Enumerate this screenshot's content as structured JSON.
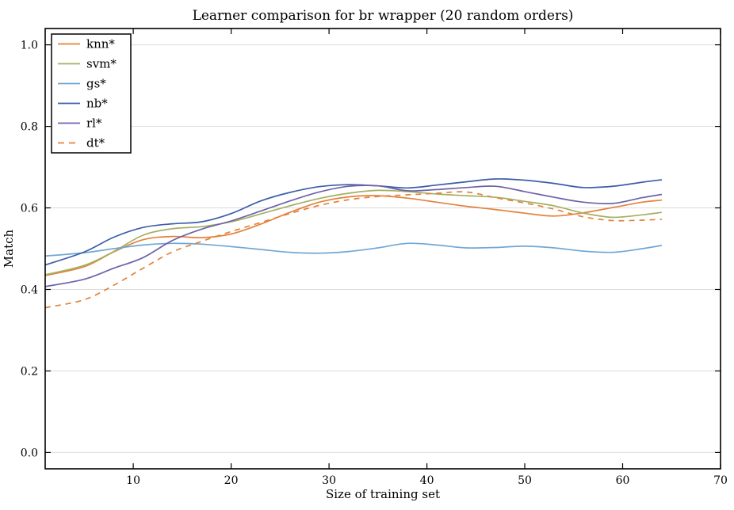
{
  "chart_data": {
    "type": "line",
    "title": "Learner comparison for br wrapper (20 random orders)",
    "xlabel": "Size of training set",
    "ylabel": "Match",
    "xlim": [
      1,
      70
    ],
    "ylim": [
      -0.04,
      1.04
    ],
    "xticks": [
      10,
      20,
      30,
      40,
      50,
      60,
      70
    ],
    "xtick_labels": [
      "10",
      "20",
      "30",
      "40",
      "50",
      "60",
      "70"
    ],
    "yticks": [
      0.0,
      0.2,
      0.4,
      0.6,
      0.8,
      1.0
    ],
    "ytick_labels": [
      "0.0",
      "0.2",
      "0.4",
      "0.6",
      "0.8",
      "1.0"
    ],
    "grid": "horizontal",
    "grid_color": "#dcdcdc",
    "spine_color": "#000000",
    "legend_position": "upper-left",
    "x": [
      1,
      5,
      8,
      11,
      14,
      17,
      20,
      23,
      26,
      29,
      32,
      35,
      38,
      41,
      44,
      47,
      50,
      53,
      56,
      59,
      62,
      64
    ],
    "series": [
      {
        "name": "knn*",
        "color": "#E5813B",
        "dash": false,
        "values": [
          0.434,
          0.456,
          0.492,
          0.522,
          0.53,
          0.527,
          0.536,
          0.56,
          0.589,
          0.614,
          0.627,
          0.63,
          0.624,
          0.614,
          0.604,
          0.596,
          0.587,
          0.58,
          0.588,
          0.601,
          0.614,
          0.619
        ]
      },
      {
        "name": "svm*",
        "color": "#A3B162",
        "dash": false,
        "values": [
          0.436,
          0.459,
          0.493,
          0.533,
          0.549,
          0.554,
          0.566,
          0.585,
          0.605,
          0.623,
          0.636,
          0.643,
          0.64,
          0.634,
          0.63,
          0.626,
          0.616,
          0.605,
          0.587,
          0.577,
          0.583,
          0.589
        ]
      },
      {
        "name": "gs*",
        "color": "#70A7D4",
        "dash": false,
        "values": [
          0.482,
          0.49,
          0.5,
          0.509,
          0.513,
          0.511,
          0.505,
          0.498,
          0.491,
          0.489,
          0.493,
          0.502,
          0.513,
          0.509,
          0.502,
          0.503,
          0.506,
          0.502,
          0.494,
          0.491,
          0.5,
          0.508
        ]
      },
      {
        "name": "nb*",
        "color": "#3D5DA9",
        "dash": false,
        "values": [
          0.46,
          0.492,
          0.528,
          0.552,
          0.561,
          0.566,
          0.586,
          0.617,
          0.638,
          0.652,
          0.657,
          0.654,
          0.649,
          0.656,
          0.664,
          0.671,
          0.668,
          0.66,
          0.65,
          0.653,
          0.663,
          0.669
        ]
      },
      {
        "name": "rl*",
        "color": "#6D63A9",
        "dash": false,
        "values": [
          0.407,
          0.425,
          0.452,
          0.478,
          0.52,
          0.548,
          0.568,
          0.592,
          0.617,
          0.639,
          0.653,
          0.654,
          0.642,
          0.645,
          0.65,
          0.653,
          0.64,
          0.626,
          0.614,
          0.611,
          0.625,
          0.633
        ]
      },
      {
        "name": "dt*",
        "color": "#E5813B",
        "dash": true,
        "values": [
          0.355,
          0.375,
          0.41,
          0.452,
          0.492,
          0.518,
          0.542,
          0.564,
          0.586,
          0.606,
          0.62,
          0.628,
          0.632,
          0.636,
          0.639,
          0.625,
          0.612,
          0.597,
          0.578,
          0.569,
          0.57,
          0.572
        ]
      }
    ]
  }
}
